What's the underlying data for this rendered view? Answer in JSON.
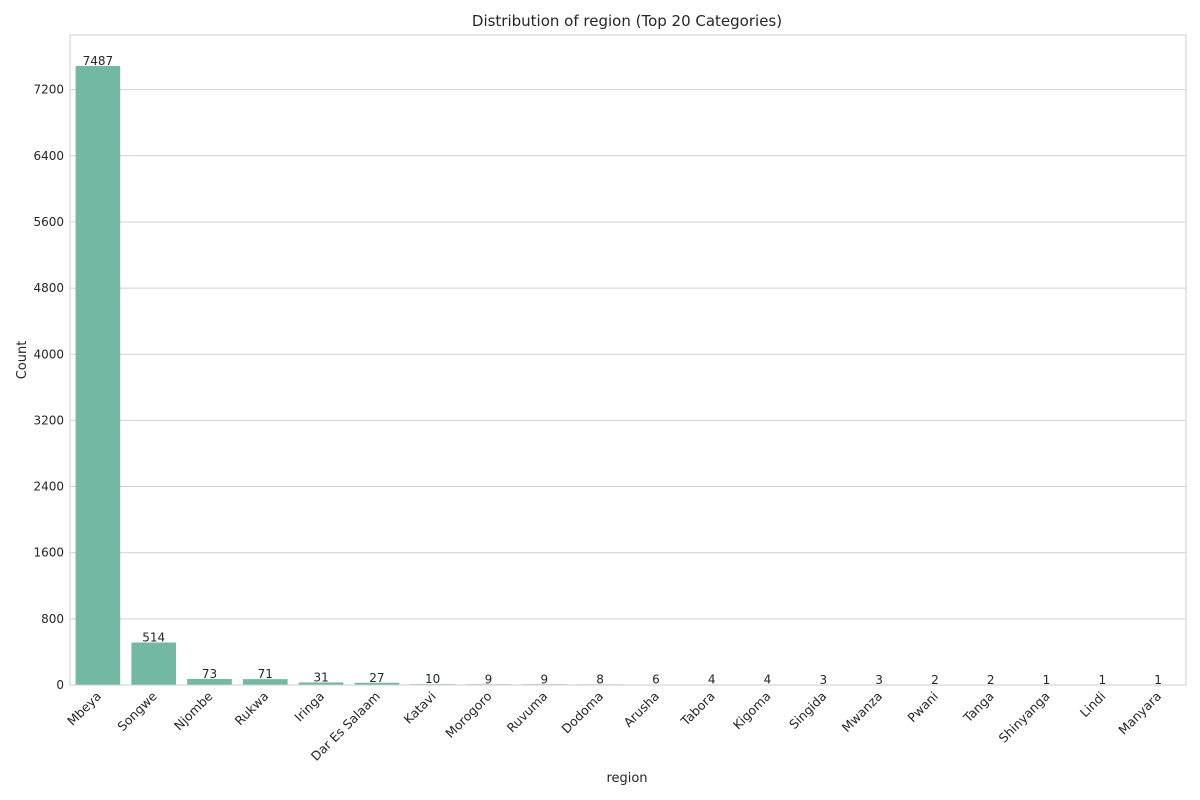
{
  "chart_data": {
    "type": "bar",
    "title": "Distribution of region (Top 20 Categories)",
    "xlabel": "region",
    "ylabel": "Count",
    "categories": [
      "Mbeya",
      "Songwe",
      "Njombe",
      "Rukwa",
      "Iringa",
      "Dar Es Salaam",
      "Katavi",
      "Morogoro",
      "Ruvuma",
      "Dodoma",
      "Arusha",
      "Tabora",
      "Kigoma",
      "Singida",
      "Mwanza",
      "Pwani",
      "Tanga",
      "Shinyanga",
      "Lindi",
      "Manyara"
    ],
    "values": [
      7487,
      514,
      73,
      71,
      31,
      27,
      10,
      9,
      9,
      8,
      6,
      4,
      4,
      3,
      3,
      2,
      2,
      1,
      1,
      1
    ],
    "ylim": [
      0,
      7861
    ],
    "yticks": [
      0,
      800,
      1600,
      2400,
      3200,
      4000,
      4800,
      5600,
      6400,
      7200
    ],
    "grid": "horizontal",
    "legend": "none",
    "bar_color": "#73b8a2",
    "grid_color": "#d0d0d0",
    "frame_color": "#cccccc"
  }
}
